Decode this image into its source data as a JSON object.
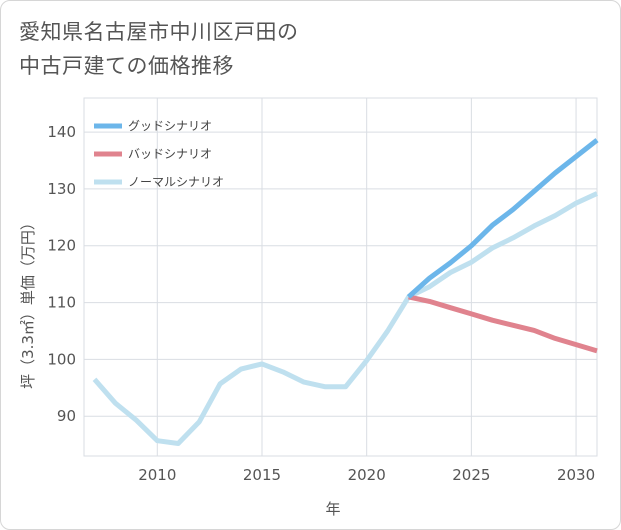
{
  "title_lines": [
    "愛知県名古屋市中川区戸田の",
    "中古戸建ての価格推移"
  ],
  "chart_data": {
    "type": "line",
    "title": "愛知県名古屋市中川区戸田の中古戸建ての価格推移",
    "xlabel": "年",
    "ylabel": "坪（3.3㎡）単価（万円）",
    "xlim": [
      2006.5,
      2031
    ],
    "ylim": [
      83,
      146
    ],
    "x_ticks": [
      2010,
      2015,
      2020,
      2025,
      2030
    ],
    "y_ticks": [
      90,
      100,
      110,
      120,
      130,
      140
    ],
    "grid": true,
    "legend_position": "top-left",
    "series": [
      {
        "name": "グッドシナリオ",
        "color": "#6cb6ea",
        "x": [
          2022,
          2023,
          2024,
          2025,
          2026,
          2027,
          2028,
          2029,
          2030,
          2031
        ],
        "values": [
          111,
          114.3,
          117.0,
          120.0,
          123.6,
          126.4,
          129.6,
          132.8,
          135.7,
          138.6
        ]
      },
      {
        "name": "バッドシナリオ",
        "color": "#e0838e",
        "x": [
          2022,
          2023,
          2024,
          2025,
          2026,
          2027,
          2028,
          2029,
          2030,
          2031
        ],
        "values": [
          111,
          110.2,
          109.1,
          108.0,
          106.9,
          106.0,
          105.1,
          103.7,
          102.6,
          101.5
        ]
      },
      {
        "name": "ノーマルシナリオ",
        "color": "#bfe0ef",
        "x": [
          2007,
          2008,
          2009,
          2010,
          2011,
          2012,
          2013,
          2014,
          2015,
          2016,
          2017,
          2018,
          2019,
          2020,
          2021,
          2022,
          2023,
          2024,
          2025,
          2026,
          2027,
          2028,
          2029,
          2030,
          2031
        ],
        "values": [
          96.5,
          92.3,
          89.3,
          85.7,
          85.2,
          89.0,
          95.7,
          98.3,
          99.2,
          97.8,
          96.0,
          95.2,
          95.2,
          99.8,
          105.0,
          111.0,
          112.8,
          115.3,
          117.1,
          119.6,
          121.4,
          123.5,
          125.3,
          127.5,
          129.2
        ]
      }
    ]
  }
}
